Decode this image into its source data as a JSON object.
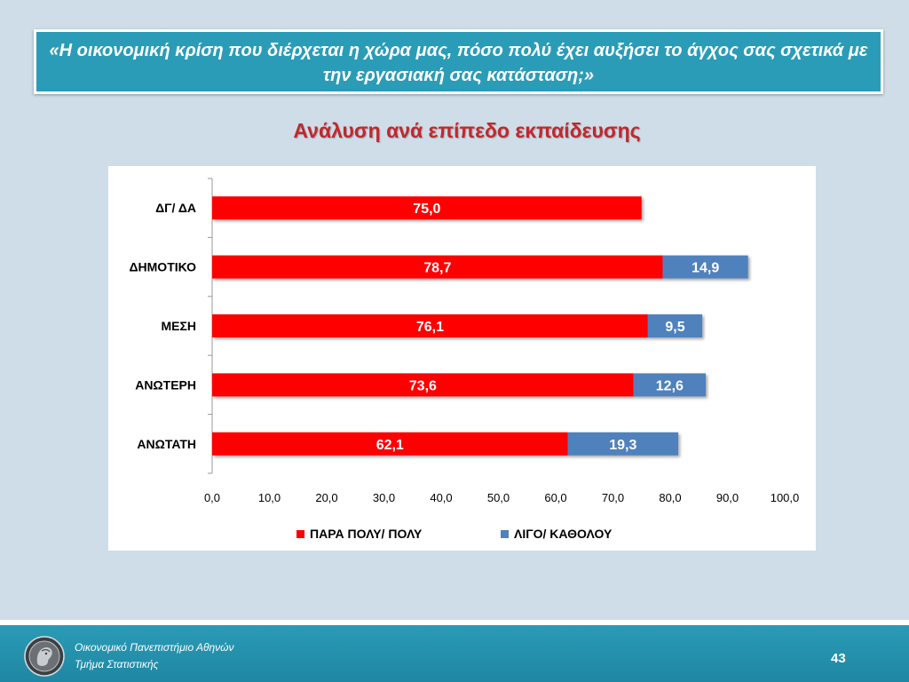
{
  "header": {
    "question": "«Η οικονομική κρίση που διέρχεται η χώρα μας, πόσο πολύ έχει αυξήσει το άγχος σας σχετικά με την εργασιακή σας κατάσταση;»"
  },
  "subtitle": "Ανάλυση ανά επίπεδο εκπαίδευσης",
  "chart_data": {
    "type": "bar",
    "orientation": "horizontal",
    "stacked": true,
    "categories": [
      "ΔΓ/ ΔΑ",
      "ΔΗΜΟΤΙΚΟ",
      "ΜΕΣΗ",
      "ΑΝΩΤΕΡΗ",
      "ΑΝΩΤΑΤΗ"
    ],
    "series": [
      {
        "name": "ΠΑΡΑ ΠΟΛΥ/ ΠΟΛΥ",
        "color": "#ff0000",
        "values": [
          75.0,
          78.7,
          76.1,
          73.6,
          62.1
        ]
      },
      {
        "name": "ΛΙΓΟ/ ΚΑΘΟΛΟΥ",
        "color": "#4f81bd",
        "values": [
          null,
          14.9,
          9.5,
          12.6,
          19.3
        ]
      }
    ],
    "xlim": [
      0,
      100
    ],
    "xticks": [
      "0,0",
      "10,0",
      "20,0",
      "30,0",
      "40,0",
      "50,0",
      "60,0",
      "70,0",
      "80,0",
      "90,0",
      "100,0"
    ],
    "legend_position": "bottom",
    "grid": false
  },
  "footer": {
    "line1": "Οικονομικό Πανεπιστήμιο Αθηνών",
    "line2": "Τμήμα Στατιστικής",
    "page_number": "43"
  }
}
